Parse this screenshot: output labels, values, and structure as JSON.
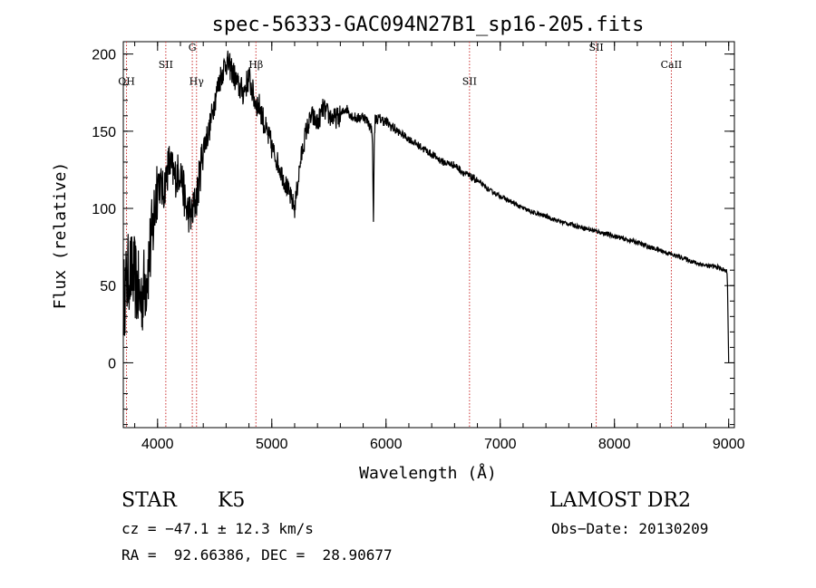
{
  "chart_data": {
    "type": "line",
    "title": "spec-56333-GAC094N27B1_sp16-205.fits",
    "xlabel": "Wavelength (Å)",
    "ylabel": "Flux (relative)",
    "xlim": [
      3700,
      9050
    ],
    "ylim": [
      -42,
      208
    ],
    "xticks": [
      4000,
      5000,
      6000,
      7000,
      8000,
      9000
    ],
    "yticks": [
      0,
      50,
      100,
      150,
      200
    ],
    "x_minor_step": 200,
    "y_minor_step": 10,
    "line_color": "#000000",
    "marker_color": "#cc3333",
    "lines": [
      {
        "label": "OH",
        "wavelength": 3728,
        "label_y": 180
      },
      {
        "label": "SII",
        "wavelength": 4072,
        "label_y": 191
      },
      {
        "label": "G",
        "wavelength": 4304,
        "label_y": 202
      },
      {
        "label": "Hγ",
        "wavelength": 4341,
        "label_y": 180
      },
      {
        "label": "Hβ",
        "wavelength": 4861,
        "label_y": 191
      },
      {
        "label": "SII",
        "wavelength": 6731,
        "label_y": 180
      },
      {
        "label": "SII",
        "wavelength": 7840,
        "label_y": 202
      },
      {
        "label": "CaII",
        "wavelength": 8498,
        "label_y": 191
      }
    ],
    "spectrum": {
      "x": [
        3700,
        3750,
        3800,
        3850,
        3900,
        3950,
        4000,
        4050,
        4100,
        4150,
        4200,
        4250,
        4300,
        4350,
        4400,
        4450,
        4500,
        4550,
        4600,
        4650,
        4700,
        4750,
        4800,
        4850,
        4900,
        4950,
        5000,
        5050,
        5100,
        5150,
        5200,
        5250,
        5300,
        5350,
        5400,
        5450,
        5500,
        5550,
        5600,
        5650,
        5700,
        5750,
        5800,
        5850,
        5880,
        5890,
        5896,
        5905,
        5950,
        6000,
        6100,
        6200,
        6300,
        6400,
        6500,
        6600,
        6700,
        6800,
        6900,
        7000,
        7100,
        7200,
        7300,
        7400,
        7500,
        7600,
        7700,
        7800,
        7900,
        8000,
        8100,
        8200,
        8300,
        8400,
        8500,
        8600,
        8700,
        8800,
        8900,
        8960,
        8985,
        8990,
        9000
      ],
      "y": [
        40,
        60,
        55,
        40,
        55,
        80,
        120,
        110,
        130,
        120,
        125,
        100,
        95,
        110,
        140,
        150,
        170,
        185,
        195,
        190,
        180,
        175,
        185,
        170,
        165,
        150,
        140,
        130,
        120,
        110,
        100,
        130,
        150,
        160,
        155,
        165,
        160,
        158,
        160,
        165,
        160,
        158,
        160,
        155,
        150,
        90,
        140,
        158,
        158,
        156,
        150,
        145,
        140,
        135,
        130,
        128,
        122,
        118,
        112,
        108,
        104,
        100,
        97,
        95,
        92,
        90,
        88,
        86,
        84,
        82,
        80,
        78,
        75,
        73,
        70,
        68,
        65,
        63,
        62,
        60,
        59,
        50,
        0
      ]
    }
  },
  "info": {
    "object_type": "STAR",
    "subclass": "K5",
    "survey": "LAMOST DR2",
    "velocity": "cz = −47.1 ± 12.3 km/s",
    "obs_date": "Obs−Date: 20130209",
    "coords": "RA =  92.66386, DEC =  28.90677"
  }
}
